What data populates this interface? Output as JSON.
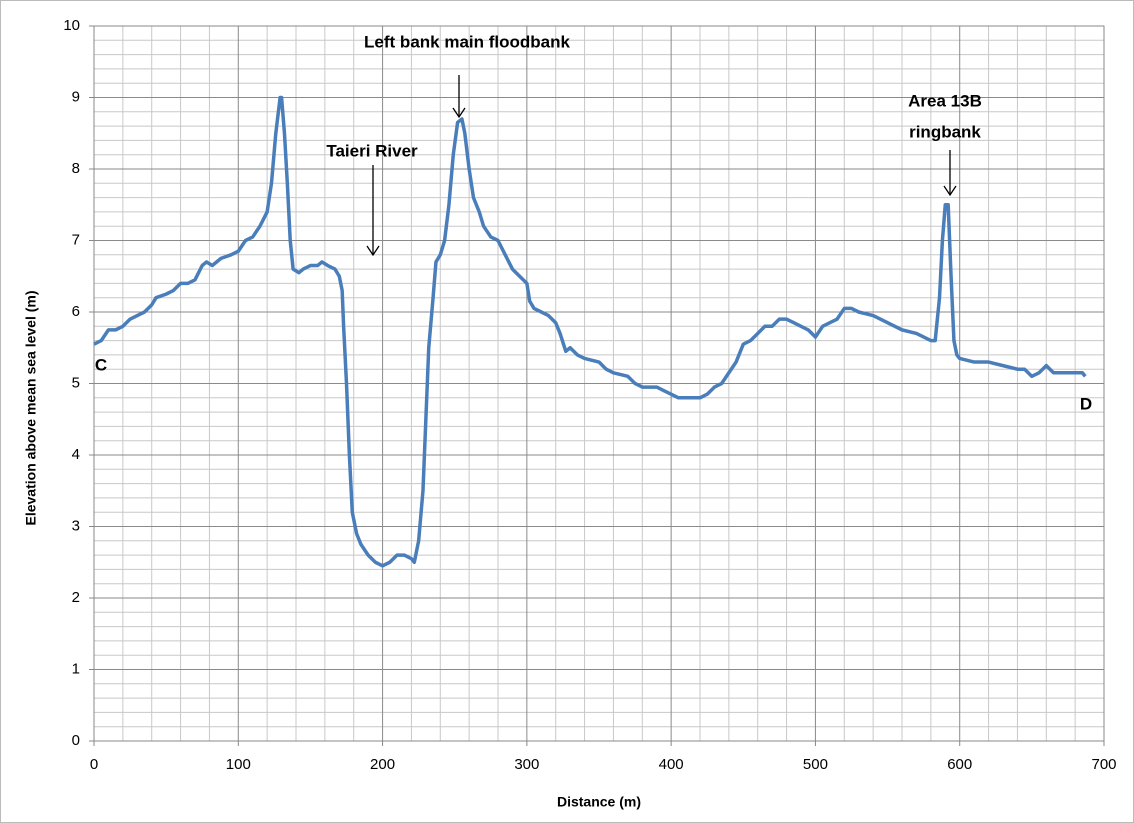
{
  "chart_data": {
    "type": "line",
    "x_label": "Distance (m)",
    "y_label": "Elevation above mean sea level  (m)",
    "annotations": [
      "Left bank main floodbank",
      "Taieri River",
      "Area 13B",
      "ringbank",
      "C",
      "D"
    ],
    "x": [
      0,
      5,
      10,
      15,
      20,
      25,
      30,
      35,
      40,
      43,
      50,
      55,
      60,
      65,
      70,
      75,
      78,
      82,
      88,
      95,
      100,
      105,
      110,
      115,
      120,
      123,
      126,
      129,
      130,
      132,
      134,
      136,
      138,
      142,
      145,
      150,
      155,
      158,
      162,
      167,
      170,
      172,
      173,
      175,
      177,
      179,
      182,
      185,
      190,
      195,
      200,
      205,
      210,
      215,
      220,
      222,
      225,
      228,
      230,
      232,
      235,
      237,
      240,
      243,
      246,
      249,
      252,
      255,
      257,
      260,
      263,
      267,
      270,
      275,
      280,
      285,
      290,
      295,
      300,
      302,
      305,
      310,
      315,
      320,
      323,
      327,
      330,
      335,
      340,
      350,
      355,
      360,
      370,
      375,
      380,
      390,
      395,
      400,
      405,
      410,
      420,
      425,
      430,
      435,
      440,
      445,
      450,
      455,
      460,
      465,
      470,
      475,
      480,
      485,
      490,
      495,
      500,
      505,
      510,
      515,
      520,
      525,
      530,
      540,
      550,
      560,
      570,
      580,
      583,
      586,
      588,
      590,
      592,
      594,
      596,
      598,
      600,
      610,
      620,
      630,
      640,
      645,
      650,
      655,
      660,
      665,
      670,
      680,
      685,
      687
    ],
    "series": [
      {
        "name": "Elevation",
        "color": "#4a7ebb",
        "values": [
          5.55,
          5.6,
          5.75,
          5.75,
          5.8,
          5.9,
          5.95,
          6.0,
          6.1,
          6.2,
          6.25,
          6.3,
          6.4,
          6.4,
          6.45,
          6.65,
          6.7,
          6.65,
          6.75,
          6.8,
          6.85,
          7.0,
          7.05,
          7.2,
          7.4,
          7.8,
          8.5,
          9.0,
          9.0,
          8.5,
          7.8,
          7.0,
          6.6,
          6.55,
          6.6,
          6.65,
          6.65,
          6.7,
          6.65,
          6.6,
          6.5,
          6.3,
          5.8,
          5.0,
          4.0,
          3.2,
          2.9,
          2.75,
          2.6,
          2.5,
          2.45,
          2.5,
          2.6,
          2.6,
          2.55,
          2.5,
          2.8,
          3.5,
          4.5,
          5.5,
          6.2,
          6.7,
          6.8,
          7.0,
          7.5,
          8.2,
          8.65,
          8.7,
          8.5,
          8.0,
          7.6,
          7.4,
          7.2,
          7.05,
          7.0,
          6.8,
          6.6,
          6.5,
          6.4,
          6.15,
          6.05,
          6.0,
          5.95,
          5.85,
          5.7,
          5.45,
          5.5,
          5.4,
          5.35,
          5.3,
          5.2,
          5.15,
          5.1,
          5.0,
          4.95,
          4.95,
          4.9,
          4.85,
          4.8,
          4.8,
          4.8,
          4.85,
          4.95,
          5.0,
          5.15,
          5.3,
          5.55,
          5.6,
          5.7,
          5.8,
          5.8,
          5.9,
          5.9,
          5.85,
          5.8,
          5.75,
          5.65,
          5.8,
          5.85,
          5.9,
          6.05,
          6.05,
          6.0,
          5.95,
          5.85,
          5.75,
          5.7,
          5.6,
          5.6,
          6.2,
          7.0,
          7.5,
          7.5,
          6.5,
          5.6,
          5.4,
          5.35,
          5.3,
          5.3,
          5.25,
          5.2,
          5.2,
          5.1,
          5.15,
          5.25,
          5.15,
          5.15,
          5.15,
          5.15,
          5.1
        ]
      }
    ],
    "xlim": [
      0,
      700
    ],
    "xticks": [
      0,
      100,
      200,
      300,
      400,
      500,
      600,
      700
    ],
    "ylim": [
      0,
      10
    ],
    "yticks": [
      0,
      1,
      2,
      3,
      4,
      5,
      6,
      7,
      8,
      9,
      10
    ],
    "grid": true
  }
}
